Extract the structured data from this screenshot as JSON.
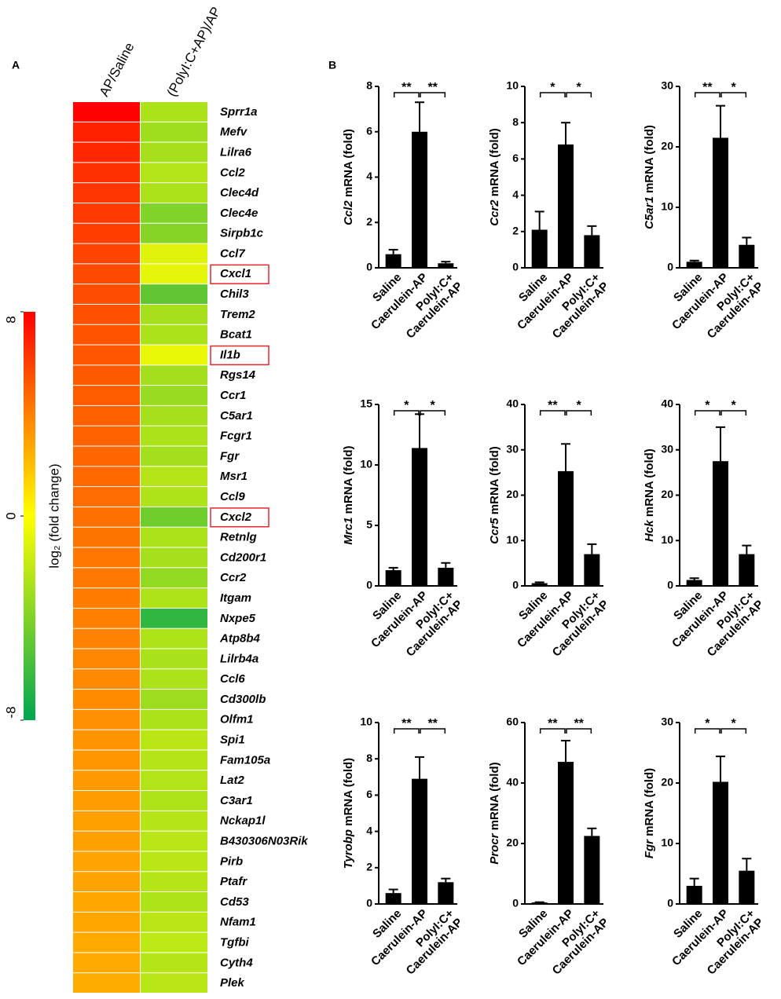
{
  "chart_data": [
    {
      "type": "heatmap",
      "panel_label": "A",
      "columns": [
        "AP/Saline",
        "(PolyI:C+AP)/AP"
      ],
      "rows": [
        "Sprr1a",
        "Mefv",
        "Lilra6",
        "Ccl2",
        "Clec4d",
        "Clec4e",
        "Sirpb1c",
        "Ccl7",
        "Cxcl1",
        "Chil3",
        "Trem2",
        "Bcat1",
        "Il1b",
        "Rgs14",
        "Ccr1",
        "C5ar1",
        "Fcgr1",
        "Fgr",
        "Msr1",
        "Ccl9",
        "Cxcl2",
        "Retnlg",
        "Cd200r1",
        "Ccr2",
        "Itgam",
        "Nxpe5",
        "Atp8b4",
        "Lilrb4a",
        "Ccl6",
        "Cd300lb",
        "Olfm1",
        "Spi1",
        "Fam105a",
        "Lat2",
        "C3ar1",
        "Nckap1l",
        "B430306N03Rik",
        "Pirb",
        "Ptafr",
        "Cd53",
        "Nfam1",
        "Tgfbi",
        "Cyth4",
        "Plek"
      ],
      "values": [
        [
          7.9,
          -2.6
        ],
        [
          7.0,
          -3.0
        ],
        [
          6.8,
          -2.8
        ],
        [
          6.5,
          -2.4
        ],
        [
          6.3,
          -2.6
        ],
        [
          6.2,
          -4.0
        ],
        [
          6.1,
          -3.8
        ],
        [
          5.9,
          -1.0
        ],
        [
          5.7,
          -0.8
        ],
        [
          5.6,
          -5.0
        ],
        [
          5.5,
          -2.8
        ],
        [
          5.4,
          -2.6
        ],
        [
          5.3,
          -0.7
        ],
        [
          5.2,
          -2.9
        ],
        [
          5.1,
          -3.2
        ],
        [
          5.0,
          -2.8
        ],
        [
          4.9,
          -2.6
        ],
        [
          4.8,
          -2.9
        ],
        [
          4.7,
          -2.3
        ],
        [
          4.6,
          -2.5
        ],
        [
          4.5,
          -4.5
        ],
        [
          4.4,
          -2.6
        ],
        [
          4.3,
          -2.8
        ],
        [
          4.2,
          -3.4
        ],
        [
          4.1,
          -2.5
        ],
        [
          4.0,
          -6.5
        ],
        [
          3.9,
          -2.5
        ],
        [
          3.8,
          -2.7
        ],
        [
          3.7,
          -2.6
        ],
        [
          3.6,
          -3.1
        ],
        [
          3.5,
          -2.6
        ],
        [
          3.4,
          -2.2
        ],
        [
          3.3,
          -2.3
        ],
        [
          3.2,
          -2.4
        ],
        [
          3.1,
          -2.5
        ],
        [
          3.0,
          -2.3
        ],
        [
          3.0,
          -2.2
        ],
        [
          2.9,
          -2.2
        ],
        [
          2.9,
          -2.3
        ],
        [
          2.8,
          -2.5
        ],
        [
          2.8,
          -2.2
        ],
        [
          2.7,
          -2.1
        ],
        [
          2.7,
          -2.3
        ],
        [
          2.6,
          -2.2
        ]
      ],
      "zlim": [
        -8,
        8
      ],
      "zticks": [
        8,
        0,
        -8
      ],
      "colorscale": [
        "#00a651",
        "#ffff00",
        "#ff0000"
      ],
      "colorbar_label": "log₂ (fold change)",
      "highlight_rows": [
        8,
        12,
        20
      ],
      "highlight_color": "#e8262b"
    },
    {
      "type": "bar",
      "panel_label": "B",
      "ylabel_gene": "Ccl2",
      "ylabel": "mRNA (fold)",
      "categories": [
        [
          "Saline"
        ],
        [
          "Caerulein-AP"
        ],
        [
          "PolyI:C+",
          "Caerulein-AP"
        ]
      ],
      "values": [
        0.6,
        6.0,
        0.2
      ],
      "errors": [
        0.2,
        1.3,
        0.07
      ],
      "ylim": [
        0,
        8
      ],
      "yticks": [
        0,
        2,
        4,
        6,
        8
      ],
      "significance": [
        "**",
        "**"
      ],
      "color": "#000000"
    },
    {
      "type": "bar",
      "ylabel_gene": "Ccr2",
      "ylabel": "mRNA (fold)",
      "categories": [
        [
          "Saline"
        ],
        [
          "Caerulein-AP"
        ],
        [
          "PolyI:C+",
          "Caerulein-AP"
        ]
      ],
      "values": [
        2.1,
        6.8,
        1.8
      ],
      "errors": [
        1.0,
        1.2,
        0.5
      ],
      "ylim": [
        0,
        10
      ],
      "yticks": [
        0,
        2,
        4,
        6,
        8,
        10
      ],
      "significance": [
        "*",
        "*"
      ],
      "color": "#000000"
    },
    {
      "type": "bar",
      "ylabel_gene": "C5ar1",
      "ylabel": "mRNA (fold)",
      "categories": [
        [
          "Saline"
        ],
        [
          "Caerulein-AP"
        ],
        [
          "PolyI:C+",
          "Caerulein-AP"
        ]
      ],
      "values": [
        1.0,
        21.5,
        3.8
      ],
      "errors": [
        0.2,
        5.3,
        1.2
      ],
      "ylim": [
        0,
        30
      ],
      "yticks": [
        0,
        10,
        20,
        30
      ],
      "significance": [
        "**",
        "*"
      ],
      "color": "#000000"
    },
    {
      "type": "bar",
      "ylabel_gene": "Mrc1",
      "ylabel": "mRNA (fold)",
      "categories": [
        [
          "Saline"
        ],
        [
          "Caerulein-AP"
        ],
        [
          "PolyI:C+",
          "Caerulein-AP"
        ]
      ],
      "values": [
        1.3,
        11.4,
        1.5
      ],
      "errors": [
        0.2,
        2.8,
        0.4
      ],
      "ylim": [
        0,
        15
      ],
      "yticks": [
        0,
        5,
        10,
        15
      ],
      "significance": [
        "*",
        "*"
      ],
      "color": "#000000"
    },
    {
      "type": "bar",
      "ylabel_gene": "Ccr5",
      "ylabel": "mRNA (fold)",
      "categories": [
        [
          "Saline"
        ],
        [
          "Caerulein-AP"
        ],
        [
          "PolyI:C+",
          "Caerulein-AP"
        ]
      ],
      "values": [
        0.6,
        25.3,
        7.0
      ],
      "errors": [
        0.2,
        6.0,
        2.2
      ],
      "ylim": [
        0,
        40
      ],
      "yticks": [
        0,
        10,
        20,
        30,
        40
      ],
      "significance": [
        "**",
        "*"
      ],
      "color": "#000000"
    },
    {
      "type": "bar",
      "ylabel_gene": "Hck",
      "ylabel": "mRNA (fold)",
      "categories": [
        [
          "Saline"
        ],
        [
          "Caerulein-AP"
        ],
        [
          "PolyI:C+",
          "Caerulein-AP"
        ]
      ],
      "values": [
        1.3,
        27.5,
        7.0
      ],
      "errors": [
        0.4,
        7.5,
        1.9
      ],
      "ylim": [
        0,
        40
      ],
      "yticks": [
        0,
        10,
        20,
        30,
        40
      ],
      "significance": [
        "*",
        "*"
      ],
      "color": "#000000"
    },
    {
      "type": "bar",
      "ylabel_gene": "Tyrobp",
      "ylabel": "mRNA (fold)",
      "categories": [
        [
          "Saline"
        ],
        [
          "Caerulein-AP"
        ],
        [
          "PolyI:C+",
          "Caerulein-AP"
        ]
      ],
      "values": [
        0.6,
        6.9,
        1.2
      ],
      "errors": [
        0.2,
        1.2,
        0.2
      ],
      "ylim": [
        0,
        10
      ],
      "yticks": [
        0,
        2,
        4,
        6,
        8,
        10
      ],
      "significance": [
        "**",
        "**"
      ],
      "color": "#000000"
    },
    {
      "type": "bar",
      "ylabel_gene": "Procr",
      "ylabel": "mRNA (fold)",
      "categories": [
        [
          "Saline"
        ],
        [
          "Caerulein-AP"
        ],
        [
          "PolyI:C+",
          "Caerulein-AP"
        ]
      ],
      "values": [
        0.5,
        47,
        22.5
      ],
      "errors": [
        0.1,
        7,
        2.5
      ],
      "ylim": [
        0,
        60
      ],
      "yticks": [
        0,
        20,
        40,
        60
      ],
      "significance": [
        "**",
        "**"
      ],
      "color": "#000000"
    },
    {
      "type": "bar",
      "ylabel_gene": "Fgr",
      "ylabel": "mRNA (fold)",
      "categories": [
        [
          "Saline"
        ],
        [
          "Caerulein-AP"
        ],
        [
          "PolyI:C+",
          "Caerulein-AP"
        ]
      ],
      "values": [
        3.0,
        20.2,
        5.5
      ],
      "errors": [
        1.2,
        4.2,
        2.0
      ],
      "ylim": [
        0,
        30
      ],
      "yticks": [
        0,
        10,
        20,
        30
      ],
      "significance": [
        "*",
        "*"
      ],
      "color": "#000000"
    }
  ]
}
